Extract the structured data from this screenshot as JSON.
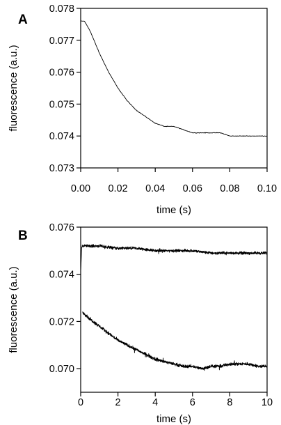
{
  "chart_data": [
    {
      "panel_label": "A",
      "type": "line",
      "xlabel": "time (s)",
      "ylabel": "fluorescence (a.u.)",
      "xlim": [
        0.0,
        0.1
      ],
      "ylim": [
        0.073,
        0.078
      ],
      "xticks": [
        0.0,
        0.02,
        0.04,
        0.06,
        0.08,
        0.1
      ],
      "xtick_labels": [
        "0.00",
        "0.02",
        "0.04",
        "0.06",
        "0.08",
        "0.10"
      ],
      "yticks": [
        0.073,
        0.074,
        0.075,
        0.076,
        0.077,
        0.078
      ],
      "ytick_labels": [
        "0.073",
        "0.074",
        "0.075",
        "0.076",
        "0.077",
        "0.078"
      ],
      "grid": false,
      "series": [
        {
          "x": [
            0.0,
            0.002,
            0.005,
            0.01,
            0.015,
            0.02,
            0.025,
            0.03,
            0.035,
            0.04,
            0.045,
            0.05,
            0.055,
            0.06,
            0.065,
            0.07,
            0.075,
            0.08,
            0.085,
            0.09,
            0.095,
            0.1
          ],
          "y": [
            0.0776,
            0.0776,
            0.0773,
            0.0766,
            0.076,
            0.0755,
            0.0751,
            0.0748,
            0.0746,
            0.0744,
            0.0743,
            0.0743,
            0.0742,
            0.0741,
            0.0741,
            0.0741,
            0.0741,
            0.074,
            0.074,
            0.074,
            0.074,
            0.074
          ]
        }
      ]
    },
    {
      "panel_label": "B",
      "type": "line",
      "xlabel": "time (s)",
      "ylabel": "fluorescence (a.u.)",
      "xlim": [
        0,
        10
      ],
      "ylim": [
        0.069,
        0.076
      ],
      "xticks": [
        0,
        2,
        4,
        6,
        8,
        10
      ],
      "xtick_labels": [
        "0",
        "2",
        "4",
        "6",
        "8",
        "10"
      ],
      "yticks": [
        0.07,
        0.072,
        0.074,
        0.076
      ],
      "ytick_labels": [
        "0.070",
        "0.072",
        "0.074",
        "0.076"
      ],
      "grid": false,
      "series": [
        {
          "x": [
            0,
            0.05,
            0.1,
            0.5,
            1,
            2,
            3,
            4,
            5,
            6,
            7,
            8,
            9,
            10
          ],
          "y": [
            0.0741,
            0.0751,
            0.0752,
            0.0752,
            0.0752,
            0.0751,
            0.0751,
            0.075,
            0.075,
            0.075,
            0.0749,
            0.0749,
            0.0749,
            0.0749
          ]
        },
        {
          "x": [
            0.1,
            0.5,
            1,
            1.5,
            2,
            2.5,
            3,
            3.5,
            4,
            4.5,
            5,
            5.5,
            6,
            6.5,
            7,
            7.5,
            8,
            8.5,
            9,
            9.5,
            10
          ],
          "y": [
            0.0724,
            0.0721,
            0.0718,
            0.0715,
            0.0712,
            0.071,
            0.0708,
            0.0706,
            0.0704,
            0.0703,
            0.0702,
            0.0701,
            0.0701,
            0.07,
            0.0701,
            0.0701,
            0.0702,
            0.0702,
            0.0702,
            0.0701,
            0.0701
          ]
        }
      ]
    }
  ]
}
